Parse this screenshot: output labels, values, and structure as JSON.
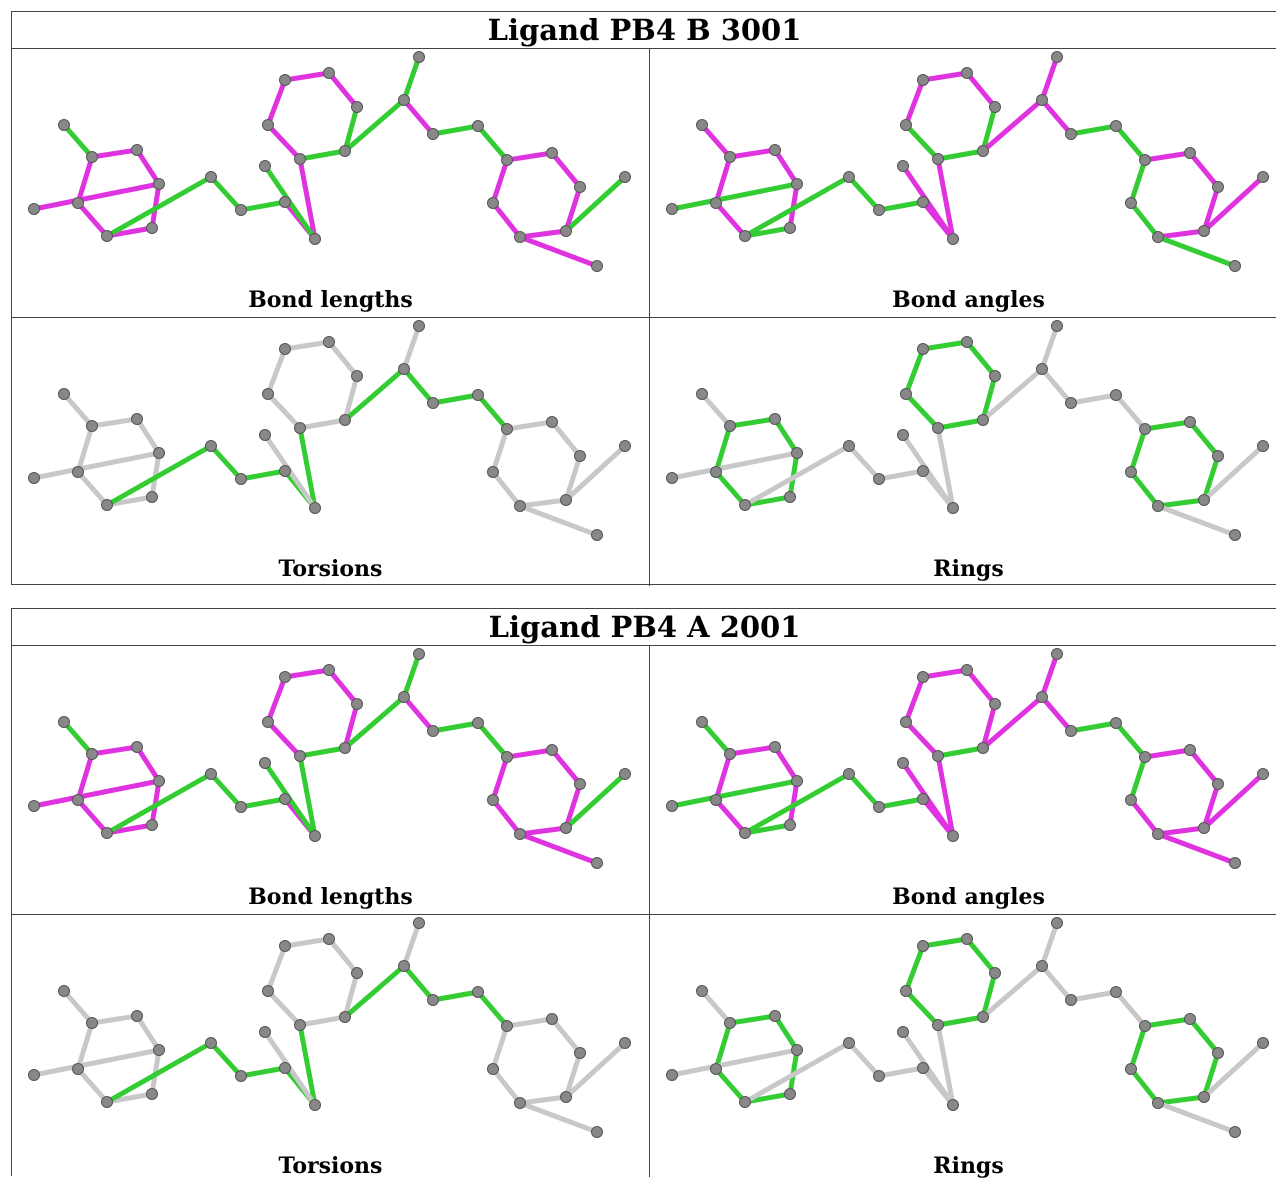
{
  "colors": {
    "good": "#33cc33",
    "outlier": "#e033e0",
    "neutral": "#c8c8c8",
    "atom": "#888888",
    "atom_edge": "#555555"
  },
  "panels": [
    {
      "title": "Ligand PB4 B 3001",
      "cells": [
        {
          "label": "Bond lengths",
          "colors": {
            "F1-C3": "green",
            "C2-C3": "magenta",
            "C2-C1": "magenta",
            "C1-C6": "magenta",
            "C6-C5": "magenta",
            "C5-C4": "magenta",
            "C4-C3": "magenta",
            "C1-Cl1": "magenta",
            "C5-C7": "green",
            "C7-C8": "green",
            "C8-C9": "green",
            "C9-C10": "magenta",
            "C10-C11": "magenta",
            "C10-F2": "green",
            "C11-C16": "green",
            "C16-C15": "green",
            "C15-C14": "magenta",
            "C14-C13": "magenta",
            "C13-C12": "magenta",
            "C12-C11": "magenta",
            "C16-C17": "green",
            "C17-F3": "green",
            "C17-C18": "magenta",
            "C18-C19": "green",
            "C19-C20": "green",
            "C20-C21": "magenta",
            "C21-C22": "magenta",
            "C22-C23": "magenta",
            "C23-C24": "magenta",
            "C24-C25": "magenta",
            "C25-C20": "magenta",
            "C23-Cl2": "green",
            "C24-F4": "magenta"
          }
        },
        {
          "label": "Bond angles",
          "colors": {
            "F1-C3": "magenta",
            "C2-C3": "magenta",
            "C2-C1": "magenta",
            "C1-C6": "magenta",
            "C6-C5": "green",
            "C5-C4": "magenta",
            "C4-C3": "magenta",
            "C1-Cl1": "green",
            "C5-C7": "green",
            "C7-C8": "green",
            "C8-C9": "green",
            "C9-C10": "magenta",
            "C10-C11": "magenta",
            "C10-F2": "magenta",
            "C11-C16": "green",
            "C16-C15": "green",
            "C15-C14": "magenta",
            "C14-C13": "magenta",
            "C13-C12": "magenta",
            "C12-C11": "green",
            "C16-C17": "magenta",
            "C17-F3": "magenta",
            "C17-C18": "magenta",
            "C18-C19": "green",
            "C19-C20": "green",
            "C20-C21": "magenta",
            "C21-C22": "magenta",
            "C22-C23": "magenta",
            "C23-C24": "magenta",
            "C24-C25": "green",
            "C25-C20": "green",
            "C23-Cl2": "magenta",
            "C24-F4": "green"
          }
        },
        {
          "label": "Torsions",
          "colors": {
            "C16-C17": "green",
            "C17-C18": "green",
            "C18-C19": "green",
            "C19-C20": "green",
            "C5-C7": "green",
            "C7-C8": "green",
            "C8-C9": "green",
            "C9-C10": "green",
            "C10-C11": "green"
          }
        },
        {
          "label": "Rings",
          "colors": {
            "C2-C3": "green",
            "C2-C1": "green",
            "C1-C6": "green",
            "C6-C5": "green",
            "C5-C4": "green",
            "C4-C3": "green",
            "C11-C16": "green",
            "C16-C15": "green",
            "C15-C14": "green",
            "C14-C13": "green",
            "C13-C12": "green",
            "C12-C11": "green",
            "C20-C21": "green",
            "C21-C22": "green",
            "C22-C23": "green",
            "C23-C24": "green",
            "C24-C25": "green",
            "C25-C20": "green"
          }
        }
      ]
    },
    {
      "title": "Ligand PB4 A 2001",
      "cells": [
        {
          "label": "Bond lengths",
          "colors": {
            "F1-C3": "green",
            "C2-C3": "magenta",
            "C2-C1": "magenta",
            "C1-C6": "magenta",
            "C6-C5": "magenta",
            "C5-C4": "magenta",
            "C4-C3": "magenta",
            "C1-Cl1": "magenta",
            "C5-C7": "green",
            "C7-C8": "green",
            "C8-C9": "green",
            "C9-C10": "magenta",
            "C10-C11": "green",
            "C10-F2": "green",
            "C11-C16": "green",
            "C16-C15": "magenta",
            "C15-C14": "magenta",
            "C14-C13": "magenta",
            "C13-C12": "magenta",
            "C12-C11": "magenta",
            "C16-C17": "green",
            "C17-F3": "green",
            "C17-C18": "magenta",
            "C18-C19": "green",
            "C19-C20": "green",
            "C20-C21": "magenta",
            "C21-C22": "magenta",
            "C22-C23": "magenta",
            "C23-C24": "magenta",
            "C24-C25": "magenta",
            "C25-C20": "magenta",
            "C23-Cl2": "green",
            "C24-F4": "magenta"
          }
        },
        {
          "label": "Bond angles",
          "colors": {
            "F1-C3": "green",
            "C2-C3": "magenta",
            "C2-C1": "magenta",
            "C1-C6": "magenta",
            "C6-C5": "green",
            "C5-C4": "magenta",
            "C4-C3": "magenta",
            "C1-Cl1": "green",
            "C5-C7": "green",
            "C7-C8": "green",
            "C8-C9": "green",
            "C9-C10": "magenta",
            "C10-C11": "magenta",
            "C10-F2": "magenta",
            "C11-C16": "green",
            "C16-C15": "magenta",
            "C15-C14": "magenta",
            "C14-C13": "magenta",
            "C13-C12": "magenta",
            "C12-C11": "magenta",
            "C16-C17": "magenta",
            "C17-F3": "magenta",
            "C17-C18": "magenta",
            "C18-C19": "green",
            "C19-C20": "green",
            "C20-C21": "magenta",
            "C21-C22": "magenta",
            "C22-C23": "magenta",
            "C23-C24": "magenta",
            "C24-C25": "magenta",
            "C25-C20": "green",
            "C23-Cl2": "magenta",
            "C24-F4": "magenta"
          }
        },
        {
          "label": "Torsions",
          "colors": {
            "C16-C17": "green",
            "C17-C18": "green",
            "C18-C19": "green",
            "C19-C20": "green",
            "C5-C7": "green",
            "C7-C8": "green",
            "C8-C9": "green",
            "C9-C10": "green",
            "C10-C11": "green"
          }
        },
        {
          "label": "Rings",
          "colors": {
            "C2-C3": "green",
            "C2-C1": "green",
            "C1-C6": "green",
            "C6-C5": "green",
            "C5-C4": "green",
            "C4-C3": "green",
            "C11-C16": "green",
            "C16-C15": "green",
            "C15-C14": "green",
            "C14-C13": "green",
            "C13-C12": "green",
            "C12-C11": "green",
            "C20-C21": "green",
            "C21-C22": "green",
            "C22-C23": "green",
            "C23-C24": "green",
            "C24-C25": "green",
            "C25-C20": "green"
          }
        }
      ]
    }
  ]
}
